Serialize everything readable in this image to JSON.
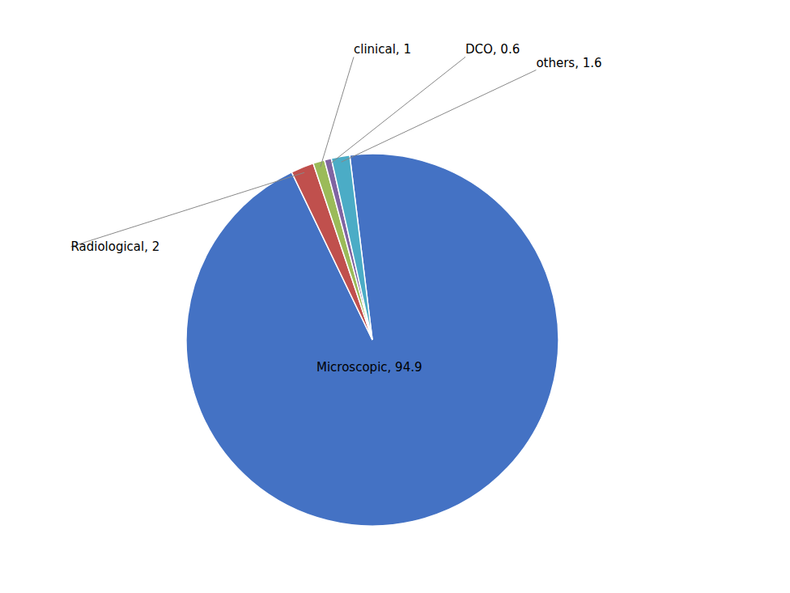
{
  "chart_data": {
    "type": "pie",
    "categories": [
      "Microscopic, 94.9",
      "Radiological, 2",
      "clinical, 1",
      "DCO, 0.6",
      "others, 1.6"
    ],
    "values": [
      94.9,
      2.0,
      1.0,
      0.6,
      1.6
    ],
    "colors": [
      "#4472C4",
      "#C0504D",
      "#9BBB59",
      "#8064A2",
      "#4BACC6"
    ]
  }
}
